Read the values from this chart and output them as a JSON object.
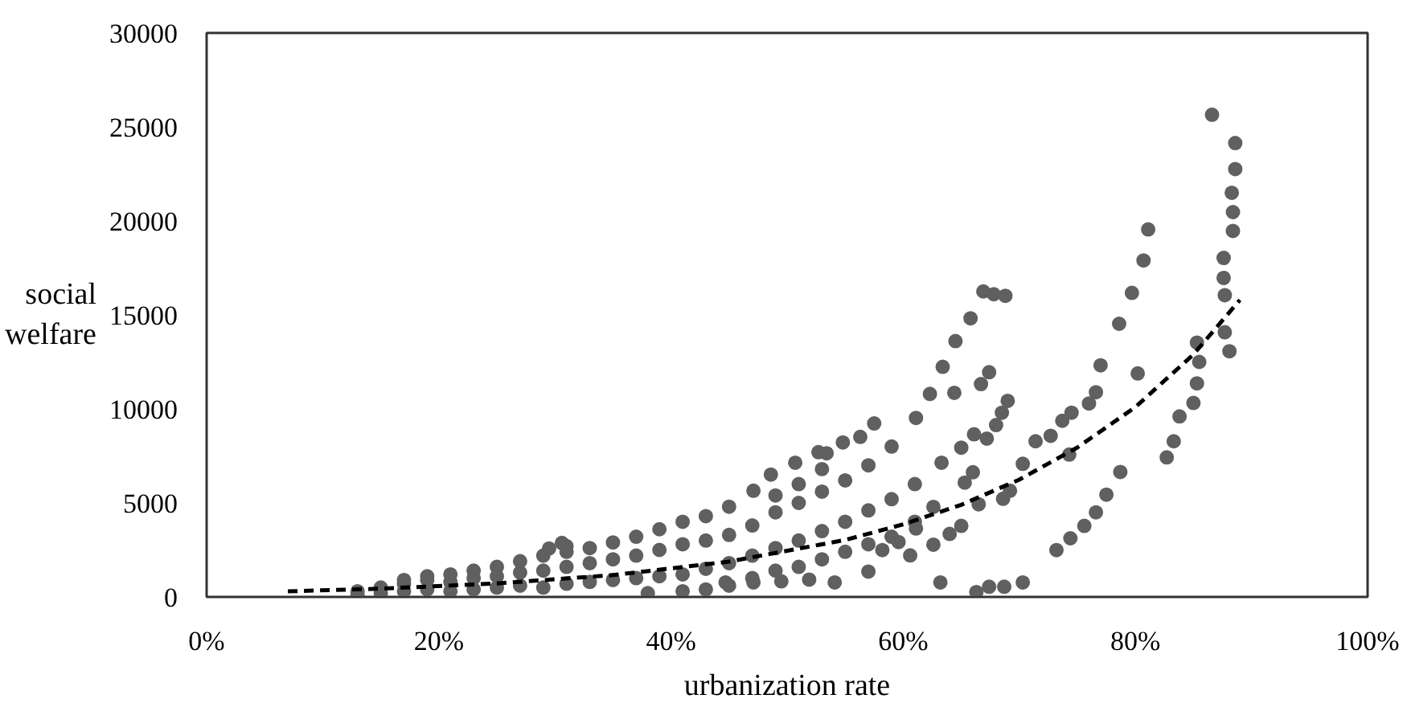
{
  "chart_data": {
    "type": "scatter",
    "xlabel": "urbanization rate",
    "ylabel": "social welfare",
    "xlim": [
      0,
      1
    ],
    "ylim": [
      0,
      30000
    ],
    "xticks": [
      {
        "value": 0,
        "label": "0%"
      },
      {
        "value": 0.2,
        "label": "20%"
      },
      {
        "value": 0.4,
        "label": "40%"
      },
      {
        "value": 0.6,
        "label": "60%"
      },
      {
        "value": 0.8,
        "label": "80%"
      },
      {
        "value": 1,
        "label": "100%"
      }
    ],
    "yticks": [
      0,
      5000,
      10000,
      15000,
      20000,
      25000,
      30000
    ],
    "grid": false,
    "marker": "circle",
    "series": [
      {
        "color": "#606060",
        "x": [
          0.13,
          0.13,
          0.15,
          0.15,
          0.17,
          0.17,
          0.17,
          0.19,
          0.19,
          0.19,
          0.21,
          0.21,
          0.21,
          0.23,
          0.23,
          0.23,
          0.25,
          0.25,
          0.25,
          0.27,
          0.27,
          0.27,
          0.29,
          0.29,
          0.29,
          0.295,
          0.306,
          0.31,
          0.31,
          0.31,
          0.31,
          0.33,
          0.33,
          0.33,
          0.35,
          0.35,
          0.35,
          0.37,
          0.37,
          0.37,
          0.38,
          0.39,
          0.39,
          0.39,
          0.41,
          0.41,
          0.41,
          0.41,
          0.43,
          0.43,
          0.43,
          0.43,
          0.45,
          0.45,
          0.45,
          0.45,
          0.47,
          0.47,
          0.47,
          0.49,
          0.49,
          0.49,
          0.49,
          0.51,
          0.51,
          0.51,
          0.51,
          0.53,
          0.53,
          0.53,
          0.53,
          0.55,
          0.55,
          0.55,
          0.57,
          0.57,
          0.57,
          0.59,
          0.59,
          0.59,
          0.61,
          0.61,
          0.447,
          0.471,
          0.495,
          0.519,
          0.541,
          0.471,
          0.486,
          0.507,
          0.527,
          0.534,
          0.548,
          0.563,
          0.575,
          0.611,
          0.57,
          0.582,
          0.596,
          0.606,
          0.611,
          0.626,
          0.626,
          0.64,
          0.632,
          0.663,
          0.674,
          0.687,
          0.703,
          0.65,
          0.665,
          0.653,
          0.66,
          0.633,
          0.65,
          0.661,
          0.672,
          0.68,
          0.685,
          0.69,
          0.644,
          0.623,
          0.667,
          0.674,
          0.634,
          0.645,
          0.658,
          0.669,
          0.678,
          0.688,
          0.686,
          0.692,
          0.703,
          0.714,
          0.727,
          0.737,
          0.745,
          0.76,
          0.766,
          0.77,
          0.743,
          0.732,
          0.744,
          0.756,
          0.766,
          0.775,
          0.787,
          0.786,
          0.797,
          0.807,
          0.811,
          0.802,
          0.827,
          0.833,
          0.838,
          0.85,
          0.853,
          0.855,
          0.853,
          0.866,
          0.886,
          0.886,
          0.883,
          0.884,
          0.884,
          0.876,
          0.876,
          0.877,
          0.877,
          0.881
        ],
        "values": [
          100,
          300,
          200,
          500,
          300,
          700,
          900,
          400,
          900,
          1100,
          300,
          800,
          1200,
          400,
          1000,
          1400,
          500,
          1100,
          1600,
          600,
          1300,
          1900,
          500,
          1400,
          2200,
          2580,
          2870,
          700,
          1600,
          2400,
          2700,
          800,
          1800,
          2600,
          900,
          2000,
          2900,
          1000,
          2200,
          3200,
          200,
          1100,
          2500,
          3600,
          300,
          1200,
          2800,
          4000,
          400,
          1500,
          3000,
          4300,
          600,
          1800,
          3300,
          4800,
          1000,
          2200,
          3800,
          1400,
          2600,
          4500,
          5400,
          1600,
          3000,
          5000,
          6000,
          2000,
          3500,
          5600,
          6800,
          2400,
          4000,
          6200,
          2800,
          4600,
          7000,
          3200,
          5200,
          8000,
          4000,
          6000,
          770,
          770,
          830,
          920,
          770,
          5650,
          6510,
          7140,
          7700,
          7640,
          8220,
          8510,
          9230,
          9520,
          1350,
          2490,
          2920,
          2210,
          3640,
          4790,
          2780,
          3350,
          770,
          260,
          540,
          540,
          770,
          3780,
          4930,
          6080,
          6630,
          7140,
          7940,
          8650,
          8420,
          9140,
          9800,
          10430,
          10860,
          10800,
          11320,
          11950,
          12240,
          13610,
          14820,
          16250,
          16100,
          16020,
          5220,
          5650,
          7080,
          8280,
          8570,
          9370,
          9800,
          10290,
          10890,
          12320,
          7570,
          2490,
          3120,
          3780,
          4500,
          5440,
          6650,
          14530,
          16170,
          17900,
          19550,
          11890,
          7420,
          8280,
          9600,
          10320,
          11360,
          12500,
          13530,
          25650,
          24140,
          22760,
          21500,
          20470,
          19470,
          18030,
          16970,
          16050,
          14080,
          13070
        ]
      },
      {
        "type": "line",
        "color": "#000000",
        "line_style": "dashed",
        "marker": "none",
        "x": [
          0.07,
          0.15,
          0.25,
          0.35,
          0.45,
          0.55,
          0.6,
          0.65,
          0.7,
          0.75,
          0.8,
          0.85,
          0.89
        ],
        "values": [
          300,
          440,
          720,
          1160,
          1880,
          3030,
          3860,
          4900,
          6240,
          7950,
          10100,
          12900,
          15800
        ]
      }
    ]
  }
}
